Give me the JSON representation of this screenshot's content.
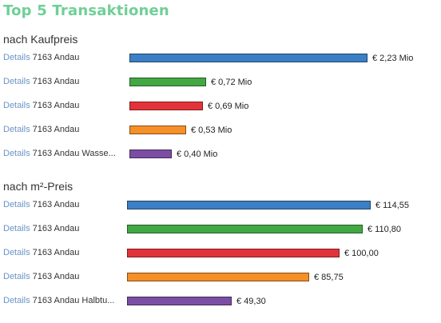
{
  "title": "Top 5 Transaktionen",
  "details_label": "Details",
  "colors": [
    "#3b7fc4",
    "#43a843",
    "#e3333a",
    "#f58f27",
    "#7b4ea3"
  ],
  "chart_data": [
    {
      "type": "bar",
      "orientation": "horizontal",
      "title": "nach Kaufpreis",
      "categories": [
        "7163 Andau",
        "7163 Andau",
        "7163 Andau",
        "7163 Andau",
        "7163 Andau Wasse..."
      ],
      "values": [
        2.23,
        0.72,
        0.69,
        0.53,
        0.4
      ],
      "value_labels": [
        "€ 2,23 Mio",
        "€ 0,72 Mio",
        "€ 0,69 Mio",
        "€ 0,53 Mio",
        "€ 0,40 Mio"
      ],
      "unit": "Mio €"
    },
    {
      "type": "bar",
      "orientation": "horizontal",
      "title": "nach m²-Preis",
      "categories": [
        "7163 Andau",
        "7163 Andau",
        "7163 Andau",
        "7163 Andau",
        "7163 Andau Halbtu..."
      ],
      "values": [
        114.55,
        110.8,
        100.0,
        85.75,
        49.3
      ],
      "value_labels": [
        "€ 114,55",
        "€ 110,80",
        "€ 100,00",
        "€ 85,75",
        "€ 49,30"
      ],
      "unit": "€/m²"
    }
  ]
}
